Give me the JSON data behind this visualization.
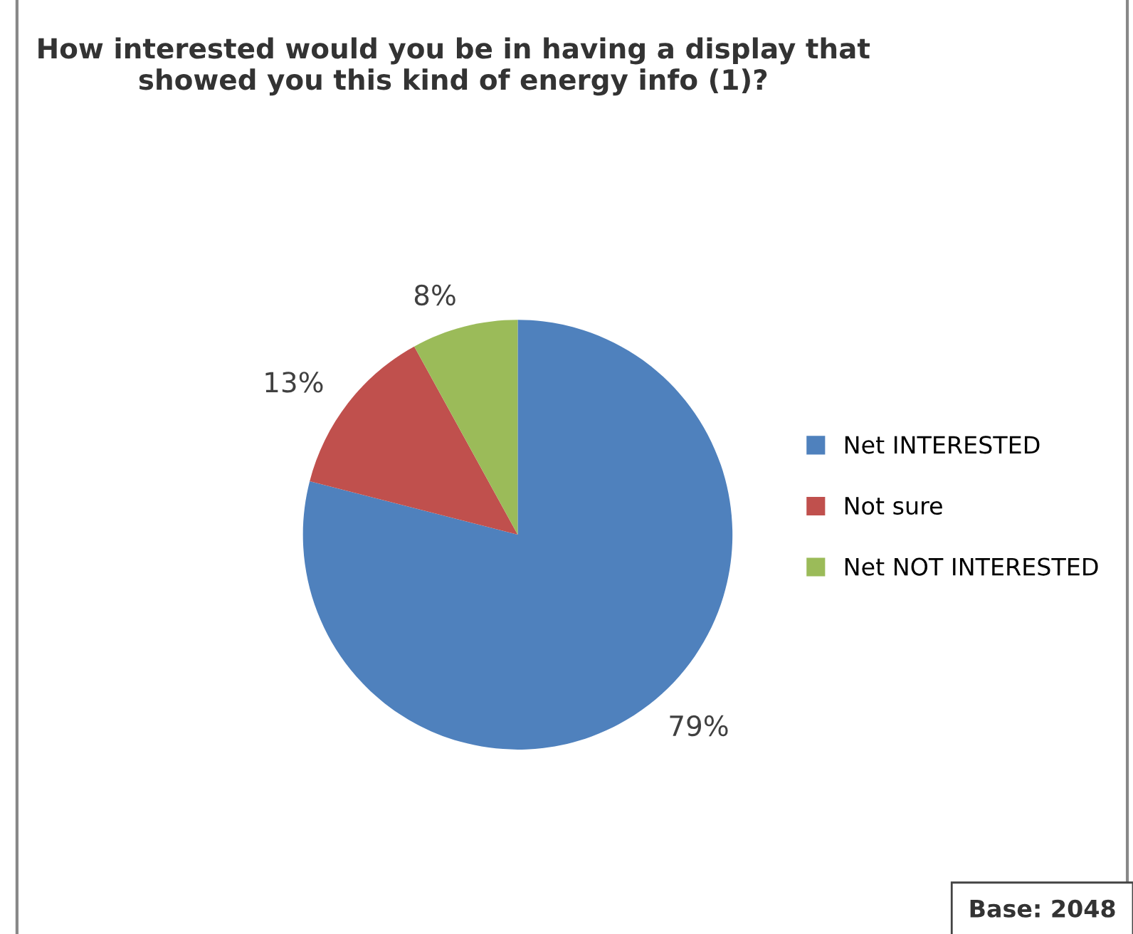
{
  "chart_data": {
    "type": "pie",
    "title": "How interested would you be in having a display that showed you this kind of energy info (1)?",
    "categories": [
      "Net INTERESTED",
      "Not sure",
      "Net NOT INTERESTED"
    ],
    "values": [
      79,
      13,
      8
    ],
    "colors": [
      "#4f81bd",
      "#c0504d",
      "#9bbb59"
    ],
    "value_labels": [
      "79%",
      "13%",
      "8%"
    ],
    "legend": "right",
    "annotations": [
      "Base: 2048"
    ]
  }
}
